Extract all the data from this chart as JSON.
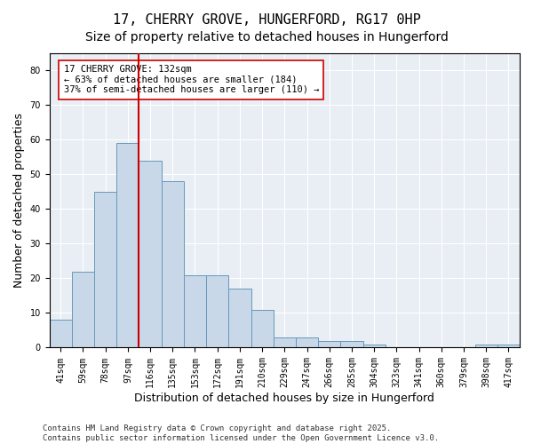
{
  "title": "17, CHERRY GROVE, HUNGERFORD, RG17 0HP",
  "subtitle": "Size of property relative to detached houses in Hungerford",
  "xlabel": "Distribution of detached houses by size in Hungerford",
  "ylabel": "Number of detached properties",
  "bins": [
    "41sqm",
    "59sqm",
    "78sqm",
    "97sqm",
    "116sqm",
    "135sqm",
    "153sqm",
    "172sqm",
    "191sqm",
    "210sqm",
    "229sqm",
    "247sqm",
    "266sqm",
    "285sqm",
    "304sqm",
    "323sqm",
    "341sqm",
    "360sqm",
    "379sqm",
    "398sqm",
    "417sqm"
  ],
  "values": [
    8,
    22,
    45,
    59,
    54,
    48,
    21,
    21,
    17,
    11,
    3,
    3,
    2,
    2,
    1,
    0,
    0,
    0,
    0,
    1,
    1
  ],
  "bar_color": "#c8d8e8",
  "bar_edge_color": "#6699bb",
  "vline_color": "#cc0000",
  "annotation_text": "17 CHERRY GROVE: 132sqm\n← 63% of detached houses are smaller (184)\n37% of semi-detached houses are larger (110) →",
  "annotation_box_color": "#ffffff",
  "annotation_box_edge": "#cc0000",
  "ylim": [
    0,
    85
  ],
  "yticks": [
    0,
    10,
    20,
    30,
    40,
    50,
    60,
    70,
    80
  ],
  "background_color": "#e8eef4",
  "footer": "Contains HM Land Registry data © Crown copyright and database right 2025.\nContains public sector information licensed under the Open Government Licence v3.0.",
  "title_fontsize": 11,
  "subtitle_fontsize": 10,
  "axis_fontsize": 9,
  "tick_fontsize": 7,
  "annotation_fontsize": 7.5,
  "footer_fontsize": 6.5
}
